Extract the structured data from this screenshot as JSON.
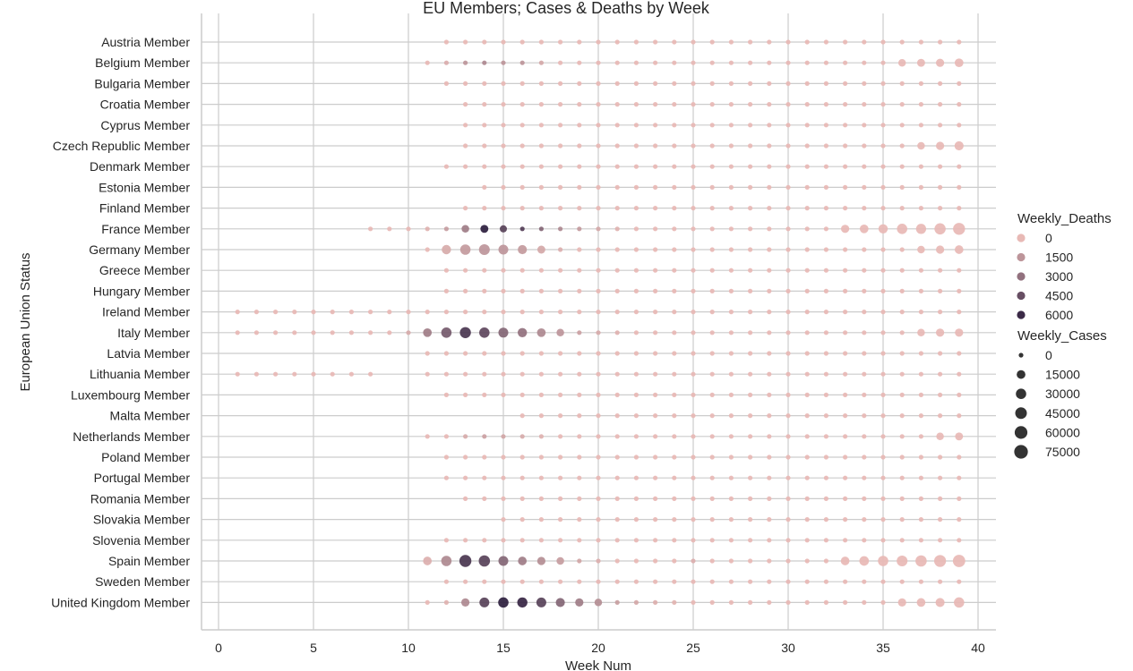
{
  "chart_data": {
    "type": "scatter",
    "title": "EU Members; Cases & Deaths by Week",
    "xlabel": "Week  Num",
    "ylabel": "European Union Status",
    "xlim": [
      -1,
      41
    ],
    "xticks": [
      0,
      5,
      10,
      15,
      20,
      25,
      30,
      35,
      40
    ],
    "grid": true,
    "legend_position": "right",
    "categories": [
      "Austria Member",
      "Belgium Member",
      "Bulgaria Member",
      "Croatia Member",
      "Cyprus Member",
      "Czech Republic Member",
      "Denmark Member",
      "Estonia Member",
      "Finland Member",
      "France Member",
      "Germany Member",
      "Greece Member",
      "Hungary Member",
      "Ireland Member",
      "Italy Member",
      "Latvia Member",
      "Lithuania Member",
      "Luxembourg Member",
      "Malta Member",
      "Netherlands Member",
      "Poland Member",
      "Portugal Member",
      "Romania Member",
      "Slovakia Member",
      "Slovenia Member",
      "Spain Member",
      "Sweden Member",
      "United Kingdom Member"
    ],
    "series": [
      {
        "category": "Austria Member",
        "start": 12,
        "end": 39,
        "deaths": {},
        "cases": {}
      },
      {
        "category": "Belgium Member",
        "start": 11,
        "end": 39,
        "deaths": {
          "12": 500,
          "13": 1500,
          "14": 2000,
          "15": 1500,
          "16": 1500,
          "17": 700
        },
        "cases": {
          "36": 8000,
          "37": 10000,
          "38": 12000,
          "39": 15000
        }
      },
      {
        "category": "Bulgaria Member",
        "start": 12,
        "end": 39,
        "deaths": {},
        "cases": {}
      },
      {
        "category": "Croatia Member",
        "start": 13,
        "end": 39,
        "deaths": {},
        "cases": {}
      },
      {
        "category": "Cyprus Member",
        "start": 13,
        "end": 39,
        "deaths": {},
        "cases": {}
      },
      {
        "category": "Czech Republic Member",
        "start": 13,
        "end": 39,
        "deaths": {},
        "cases": {
          "37": 8000,
          "38": 12000,
          "39": 18000
        }
      },
      {
        "category": "Denmark Member",
        "start": 12,
        "end": 39,
        "deaths": {},
        "cases": {}
      },
      {
        "category": "Estonia Member",
        "start": 14,
        "end": 39,
        "deaths": {},
        "cases": {}
      },
      {
        "category": "Finland Member",
        "start": 13,
        "end": 39,
        "deaths": {},
        "cases": {}
      },
      {
        "category": "France Member",
        "start": 8,
        "end": 39,
        "deaths": {
          "11": 300,
          "12": 1200,
          "13": 2500,
          "14": 6500,
          "15": 5000,
          "16": 5200,
          "17": 3500,
          "18": 2000,
          "19": 1300,
          "20": 700,
          "21": 300
        },
        "cases": {
          "13": 8000,
          "14": 10000,
          "15": 6000,
          "33": 12000,
          "34": 15000,
          "35": 20000,
          "36": 30000,
          "37": 28000,
          "38": 40000,
          "39": 50000
        }
      },
      {
        "category": "Germany Member",
        "start": 11,
        "end": 39,
        "deaths": {
          "12": 600,
          "13": 1300,
          "14": 1500,
          "15": 1500,
          "16": 1300,
          "17": 700,
          "18": 400
        },
        "cases": {
          "12": 20000,
          "13": 30000,
          "14": 35000,
          "15": 25000,
          "16": 18000,
          "17": 10000,
          "37": 8000,
          "38": 12000,
          "39": 15000
        }
      },
      {
        "category": "Greece Member",
        "start": 12,
        "end": 39,
        "deaths": {},
        "cases": {}
      },
      {
        "category": "Hungary Member",
        "start": 12,
        "end": 39,
        "deaths": {},
        "cases": {}
      },
      {
        "category": "Ireland Member",
        "start": 1,
        "end": 39,
        "deaths": {},
        "cases": {}
      },
      {
        "category": "Italy Member",
        "start": 1,
        "end": 39,
        "deaths": {
          "10": 600,
          "11": 2500,
          "12": 4000,
          "13": 5500,
          "14": 4800,
          "15": 3500,
          "16": 3000,
          "17": 2000,
          "18": 1500,
          "19": 1000,
          "20": 600,
          "21": 300
        },
        "cases": {
          "11": 15000,
          "12": 30000,
          "13": 38000,
          "14": 30000,
          "15": 25000,
          "16": 20000,
          "17": 15000,
          "18": 8000,
          "37": 8000,
          "38": 12000,
          "39": 12000
        }
      },
      {
        "category": "Latvia Member",
        "start": 11,
        "end": 39,
        "deaths": {},
        "cases": {}
      },
      {
        "category": "Lithuania Member",
        "start": 1,
        "end": 39,
        "gap": [
          9,
          10
        ],
        "deaths": {},
        "cases": {}
      },
      {
        "category": "Luxembourg Member",
        "start": 12,
        "end": 39,
        "deaths": {},
        "cases": {}
      },
      {
        "category": "Malta Member",
        "start": 16,
        "end": 39,
        "deaths": {},
        "cases": {}
      },
      {
        "category": "Netherlands Member",
        "start": 11,
        "end": 39,
        "deaths": {
          "13": 600,
          "14": 1000,
          "15": 800,
          "16": 600,
          "17": 300
        },
        "cases": {
          "38": 8000,
          "39": 10000
        }
      },
      {
        "category": "Poland Member",
        "start": 12,
        "end": 39,
        "deaths": {},
        "cases": {}
      },
      {
        "category": "Portugal Member",
        "start": 12,
        "end": 39,
        "deaths": {},
        "cases": {}
      },
      {
        "category": "Romania Member",
        "start": 13,
        "end": 39,
        "deaths": {},
        "cases": {}
      },
      {
        "category": "Slovakia Member",
        "start": 15,
        "end": 39,
        "deaths": {},
        "cases": {}
      },
      {
        "category": "Slovenia Member",
        "start": 12,
        "end": 39,
        "deaths": {},
        "cases": {}
      },
      {
        "category": "Spain Member",
        "start": 11,
        "end": 39,
        "deaths": {
          "11": 400,
          "12": 2000,
          "13": 5500,
          "14": 5000,
          "15": 3500,
          "16": 2500,
          "17": 1800,
          "18": 1200,
          "19": 800,
          "20": 400,
          "25": 400
        },
        "cases": {
          "11": 15000,
          "12": 30000,
          "13": 50000,
          "14": 40000,
          "15": 25000,
          "16": 15000,
          "17": 12000,
          "18": 8000,
          "33": 15000,
          "34": 22000,
          "35": 30000,
          "36": 35000,
          "37": 40000,
          "38": 48000,
          "39": 55000
        }
      },
      {
        "category": "Sweden Member",
        "start": 12,
        "end": 39,
        "deaths": {},
        "cases": {}
      },
      {
        "category": "United Kingdom Member",
        "start": 11,
        "end": 39,
        "deaths": {
          "12": 300,
          "13": 2000,
          "14": 5000,
          "15": 6500,
          "16": 6200,
          "17": 5000,
          "18": 3500,
          "19": 2500,
          "20": 1800,
          "21": 1100,
          "22": 700,
          "23": 400,
          "24": 200
        },
        "cases": {
          "13": 12000,
          "14": 25000,
          "15": 30000,
          "16": 28000,
          "17": 25000,
          "18": 18000,
          "19": 12000,
          "20": 8000,
          "36": 12000,
          "37": 15000,
          "38": 18000,
          "39": 30000
        }
      }
    ],
    "legend_deaths": {
      "title": "Weekly_Deaths",
      "labels": [
        "0",
        "1500",
        "3000",
        "4500",
        "6000"
      ],
      "values": [
        0,
        1500,
        3000,
        4500,
        6000
      ]
    },
    "legend_cases": {
      "title": "Weekly_Cases",
      "labels": [
        "0",
        "15000",
        "30000",
        "45000",
        "60000",
        "75000"
      ],
      "values": [
        0,
        15000,
        30000,
        45000,
        60000,
        75000
      ]
    },
    "deaths_max": 6500,
    "cases_max": 80000,
    "colors": {
      "low": "#e8b9b5",
      "high": "#2d1e3e",
      "grid": "#cccccc",
      "axis": "#cccccc"
    }
  }
}
